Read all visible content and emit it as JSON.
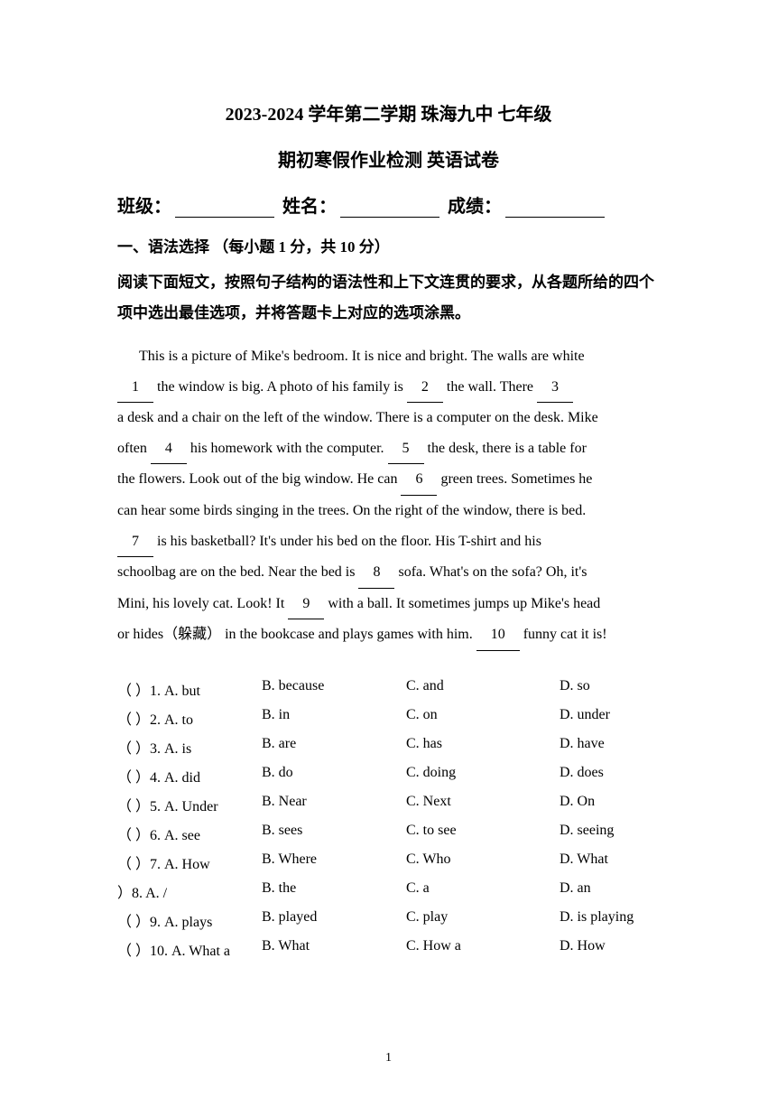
{
  "header": {
    "title_line1": "2023-2024 学年第二学期 珠海九中 七年级",
    "title_line2": "期初寒假作业检测 英语试卷",
    "class_label": "班级：",
    "name_label": "姓名：",
    "score_label": "成绩："
  },
  "section": {
    "number_title": "一、语法选择 （每小题 1 分，共 10 分）",
    "instruction_line1": "阅读下面短文，按照句子结构的语法性和上下文连贯的要求，从各题所给的四个",
    "instruction_line2": "项中选出最佳选项，并将答题卡上对应的选项涂黑。"
  },
  "passage": {
    "p1_a": "This is a picture of Mike's bedroom. It is nice and bright. The walls are white",
    "blank1": "1",
    "p1_b": " the window is big. A photo of his family is ",
    "blank2": "2",
    "p1_c": " the wall. There ",
    "blank3": "3",
    "p2_a": "a desk and a chair on the left of the window. There is a computer on the desk. Mike",
    "p3_a": "often ",
    "blank4": "4",
    "p3_b": " his homework with the computer. ",
    "blank5": "5",
    "p3_c": " the desk, there is a table for",
    "p4_a": "the flowers. Look out of the big window. He can ",
    "blank6": "6",
    "p4_b": " green trees. Sometimes he",
    "p5_a": "can hear some birds singing in the trees. On the right of the window, there is bed.",
    "blank7": "7",
    "p6_a": " is his basketball? It's under his bed on the floor. His T-shirt and his",
    "p7_a": "schoolbag are on the bed. Near the bed is ",
    "blank8": "8",
    "p7_b": " sofa. What's on the sofa? Oh, it's",
    "p8_a": "Mini, his lovely cat. Look! It ",
    "blank9": "9",
    "p8_b": " with a ball. It sometimes jumps up Mike's head",
    "p9_a": "or hides（躲藏） in the bookcase and plays games with him. ",
    "blank10": "10",
    "p9_b": " funny cat it is!"
  },
  "options": [
    {
      "num": "（    ）1. A. but",
      "b": "B. because",
      "c": "C. and",
      "d": "D. so"
    },
    {
      "num": "（    ）2. A. to",
      "b": "B. in",
      "c": "C. on",
      "d": "D. under"
    },
    {
      "num": "（    ）3. A. is",
      "b": "B. are",
      "c": "C. has",
      "d": "D. have"
    },
    {
      "num": "（    ）4. A. did",
      "b": "B. do",
      "c": "C. doing",
      "d": "D. does"
    },
    {
      "num": "（    ）5. A. Under",
      "b": "B. Near",
      "c": "C. Next",
      "d": "D. On"
    },
    {
      "num": "（    ）6. A. see",
      "b": "B. sees",
      "c": "C. to see",
      "d": "D. seeing"
    },
    {
      "num": "（    ）7. A. How",
      "b": "B. Where",
      "c": "C. Who",
      "d": "D. What"
    },
    {
      "num": "    ）8. A. /",
      "b": "B. the",
      "c": "C. a",
      "d": "D. an"
    },
    {
      "num": "（    ）9. A. plays",
      "b": "B. played",
      "c": "C. play",
      "d": "D. is playing"
    },
    {
      "num": "（    ）10. A. What a",
      "b": "B. What",
      "c": "C. How a",
      "d": "D. How"
    }
  ],
  "page_number": "1"
}
